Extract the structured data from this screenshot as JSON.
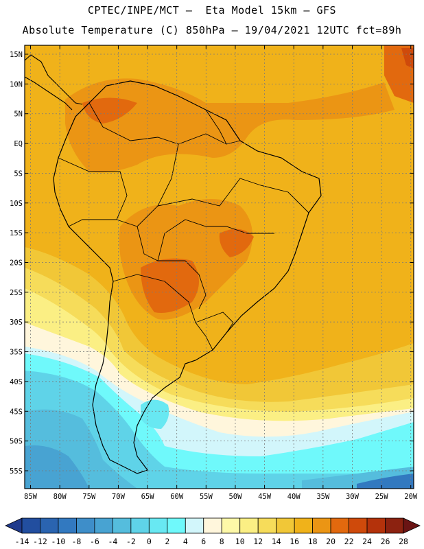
{
  "header": {
    "line1": "CPTEC/INPE/MCT –  Eta Model 15km – GFS",
    "line2": "Absolute Temperature (C) 850hPa – 19/04/2021 12UTC fct=89h"
  },
  "map": {
    "lat_labels": [
      "15N",
      "10N",
      "5N",
      "EQ",
      "5S",
      "10S",
      "15S",
      "20S",
      "25S",
      "30S",
      "35S",
      "40S",
      "45S",
      "50S",
      "55S"
    ],
    "lon_labels": [
      "85W",
      "80W",
      "75W",
      "70W",
      "65W",
      "60W",
      "55W",
      "50W",
      "45W",
      "40W",
      "35W",
      "30W",
      "25W",
      "20W"
    ],
    "lat_values": [
      15,
      10,
      5,
      0,
      -5,
      -10,
      -15,
      -20,
      -25,
      -30,
      -35,
      -40,
      -45,
      -50,
      -55
    ],
    "lon_values": [
      -85,
      -80,
      -75,
      -70,
      -65,
      -60,
      -55,
      -50,
      -45,
      -40,
      -35,
      -30,
      -25,
      -20
    ],
    "extent": {
      "lon_min": -86,
      "lon_max": -19.5,
      "lat_min": -58,
      "lat_max": 16.5
    }
  },
  "legend": {
    "labels": [
      "-14",
      "-12",
      "-10",
      "-8",
      "-6",
      "-4",
      "-2",
      "0",
      "2",
      "4",
      "6",
      "8",
      "10",
      "12",
      "14",
      "16",
      "18",
      "20",
      "22",
      "24",
      "26",
      "28"
    ],
    "colors": [
      "#1f3a8c",
      "#224e9f",
      "#2a64b0",
      "#3279c0",
      "#3e8ec9",
      "#48a3d2",
      "#55bddd",
      "#5fd3e8",
      "#68e8f2",
      "#6ff9fb",
      "#d2f6fb",
      "#fff6dc",
      "#fdf8a8",
      "#fbef84",
      "#f6dc5a",
      "#f1c737",
      "#f0b21a",
      "#eb9514",
      "#e2690e",
      "#cf4a0b",
      "#b4320b",
      "#8c2210",
      "#6a1414"
    ]
  }
}
